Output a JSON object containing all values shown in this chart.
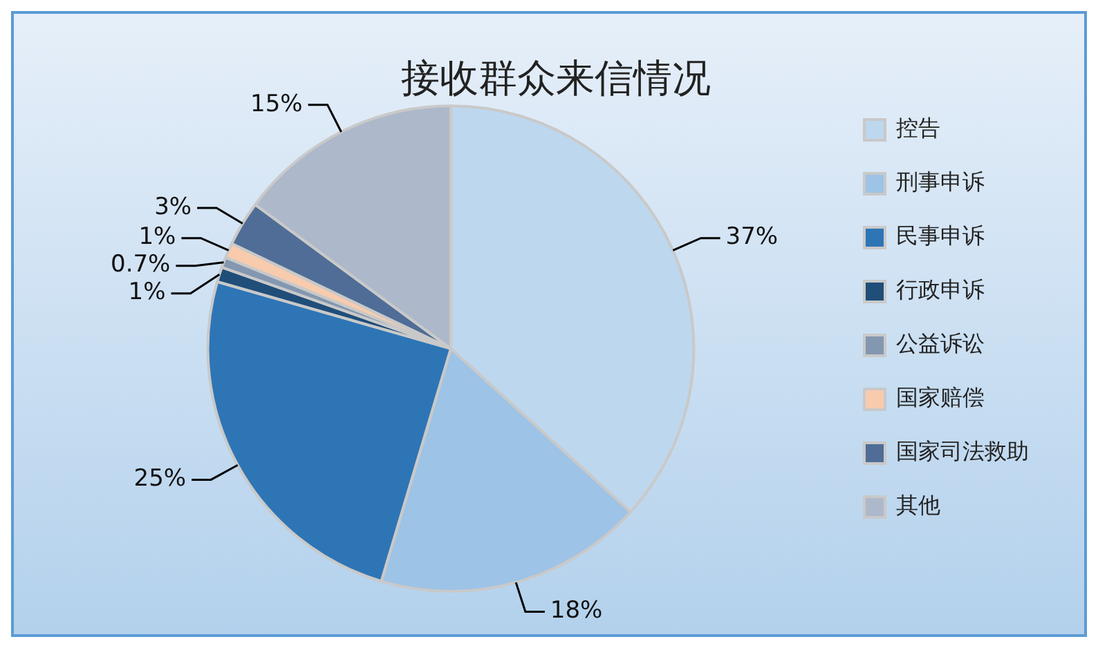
{
  "chart_data": {
    "type": "pie",
    "title": "接收群众来信情况",
    "categories": [
      "控告",
      "刑事申诉",
      "民事申诉",
      "行政申诉",
      "公益诉讼",
      "国家赔偿",
      "国家司法救助",
      "其他"
    ],
    "values": [
      37,
      18,
      25,
      1,
      0.7,
      1,
      3,
      15
    ],
    "colors": [
      "#bdd7ee",
      "#9dc3e6",
      "#2e75b6",
      "#1f4e79",
      "#8497b0",
      "#f8cbad",
      "#4f6d96",
      "#adb9ca"
    ],
    "value_labels": [
      "37%",
      "18%",
      "25%",
      "1%",
      "0.7%",
      "1%",
      "3%",
      "15%"
    ],
    "legend": "right"
  }
}
